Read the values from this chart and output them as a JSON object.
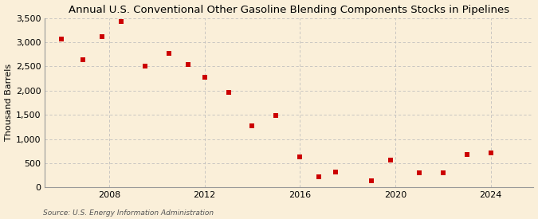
{
  "title": "Annual U.S. Conventional Other Gasoline Blending Components Stocks in Pipelines",
  "ylabel": "Thousand Barrels",
  "source": "Source: U.S. Energy Information Administration",
  "background_color": "#faefd9",
  "marker_color": "#cc0000",
  "x_points": [
    2006,
    2006.9,
    2007.7,
    2008.5,
    2009.5,
    2010.5,
    2011.3,
    2012.0,
    2013.0,
    2014.0,
    2015.0,
    2016.0,
    2016.8,
    2017.5,
    2019.0,
    2019.8,
    2021.0,
    2022.0,
    2023.0,
    2024.0
  ],
  "y_points": [
    3060,
    2640,
    3110,
    3430,
    2510,
    2770,
    2540,
    2270,
    1960,
    1270,
    1490,
    630,
    220,
    310,
    130,
    570,
    300,
    300,
    680,
    720
  ],
  "ylim": [
    0,
    3500
  ],
  "yticks": [
    0,
    500,
    1000,
    1500,
    2000,
    2500,
    3000,
    3500
  ],
  "xlim": [
    2005.3,
    2025.8
  ],
  "xticks": [
    2008,
    2012,
    2016,
    2020,
    2024
  ],
  "grid_color": "#bbbbbb",
  "title_fontsize": 9.5,
  "label_fontsize": 8,
  "tick_fontsize": 8,
  "source_fontsize": 6.5
}
